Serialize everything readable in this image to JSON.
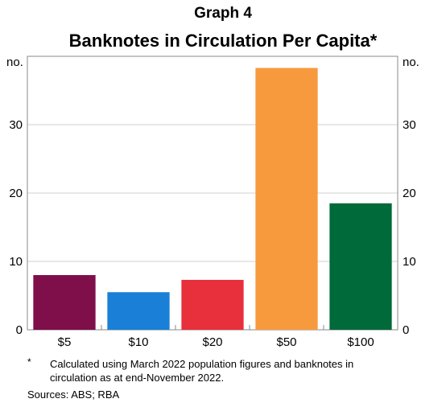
{
  "header": {
    "graph_label": "Graph 4"
  },
  "chart_data": {
    "type": "bar",
    "title": "Banknotes in Circulation Per Capita*",
    "categories": [
      "$5",
      "$10",
      "$20",
      "$50",
      "$100"
    ],
    "values": [
      8,
      5.5,
      7.3,
      38.3,
      18.5
    ],
    "colors": [
      "#7e0f4a",
      "#1a7fd6",
      "#e82f3c",
      "#f79a3e",
      "#006a3a"
    ],
    "unit_label_left": "no.",
    "unit_label_right": "no.",
    "ylim": [
      0,
      40
    ],
    "yticks": [
      0,
      10,
      20,
      30
    ],
    "grid": true,
    "legend": "none"
  },
  "footnote": {
    "marker": "*",
    "text": "Calculated using March 2022 population figures and banknotes in circulation as at end-November 2022."
  },
  "sources": "Sources: ABS; RBA"
}
